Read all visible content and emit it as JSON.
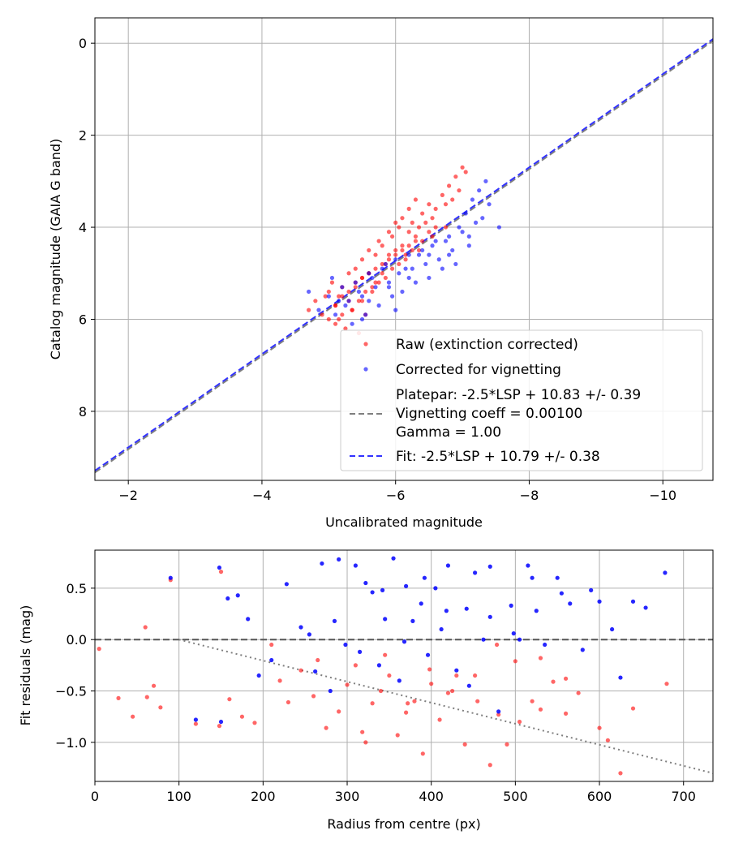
{
  "chart_data": [
    {
      "type": "scatter",
      "xlabel": "Uncalibrated magnitude",
      "ylabel": "Catalog magnitude (GAIA G band)",
      "xlim": [
        -1.5,
        -10.75
      ],
      "ylim": [
        9.5,
        -0.55
      ],
      "x_axis_inverted": true,
      "y_axis_inverted": true,
      "grid": true,
      "legend_position": "lower-right",
      "xticks": [
        -2,
        -4,
        -6,
        -8,
        -10
      ],
      "xtick_labels": [
        "−2",
        "−4",
        "−6",
        "−8",
        "−10"
      ],
      "yticks": [
        0,
        2,
        4,
        6,
        8
      ],
      "ytick_labels": [
        "0",
        "2",
        "4",
        "6",
        "8"
      ],
      "series": [
        {
          "name": "Raw (extinction corrected)",
          "kind": "points",
          "color": "#ff0000",
          "opacity": 0.6,
          "x": [
            -4.7,
            -4.8,
            -4.9,
            -5.0,
            -5.0,
            -5.05,
            -5.1,
            -5.1,
            -5.15,
            -5.2,
            -5.2,
            -5.25,
            -5.3,
            -5.3,
            -5.35,
            -5.4,
            -5.4,
            -5.45,
            -5.5,
            -5.5,
            -5.5,
            -5.55,
            -5.6,
            -5.6,
            -5.65,
            -5.7,
            -5.7,
            -5.75,
            -5.8,
            -5.8,
            -5.85,
            -5.9,
            -5.9,
            -5.95,
            -6.0,
            -6.0,
            -6.05,
            -6.1,
            -6.1,
            -6.15,
            -6.2,
            -6.2,
            -6.25,
            -6.3,
            -6.3,
            -6.35,
            -6.4,
            -6.4,
            -6.45,
            -6.5,
            -6.5,
            -6.55,
            -6.6,
            -6.6,
            -6.7,
            -6.75,
            -6.8,
            -6.85,
            -6.9,
            -6.95,
            -7.0,
            -7.05,
            -5.2,
            -5.4,
            -5.6,
            -5.8,
            -6.0,
            -6.2,
            -5.1,
            -5.3,
            -5.5,
            -5.7,
            -5.9,
            -6.1,
            -6.3,
            -5.45,
            -5.65,
            -5.85,
            -6.05,
            -6.25,
            -5.15,
            -5.35,
            -5.55,
            -5.75,
            -5.95,
            -6.15,
            -6.35,
            -6.55,
            -6.75,
            -4.95
          ],
          "y": [
            5.8,
            5.6,
            5.9,
            5.4,
            6.0,
            5.2,
            5.7,
            6.1,
            5.5,
            5.3,
            5.9,
            6.2,
            5.0,
            5.6,
            5.8,
            4.9,
            5.3,
            6.3,
            4.7,
            5.1,
            5.6,
            5.9,
            4.5,
            5.0,
            5.4,
            4.6,
            5.2,
            4.3,
            4.4,
            5.0,
            4.8,
            4.1,
            4.6,
            4.2,
            3.9,
            4.5,
            4.0,
            3.8,
            4.4,
            4.6,
            3.6,
            4.1,
            3.9,
            3.4,
            4.2,
            4.0,
            3.7,
            4.3,
            3.9,
            3.5,
            4.1,
            3.8,
            3.6,
            4.0,
            3.3,
            3.5,
            3.1,
            3.4,
            2.9,
            3.2,
            2.7,
            2.8,
            5.5,
            5.2,
            5.0,
            4.8,
            4.6,
            4.4,
            5.7,
            5.4,
            5.1,
            4.9,
            4.7,
            4.5,
            4.3,
            5.6,
            5.3,
            5.1,
            4.8,
            4.5,
            6.0,
            5.8,
            5.4,
            5.2,
            4.9,
            4.7,
            4.5,
            4.2,
            4.0,
            5.5
          ]
        },
        {
          "name": "Corrected for vignetting",
          "kind": "points",
          "color": "#0000ff",
          "opacity": 0.6,
          "x": [
            -4.7,
            -4.85,
            -5.0,
            -5.1,
            -5.2,
            -5.3,
            -5.35,
            -5.4,
            -5.5,
            -5.55,
            -5.6,
            -5.7,
            -5.75,
            -5.8,
            -5.9,
            -5.95,
            -6.0,
            -6.05,
            -6.1,
            -6.2,
            -6.25,
            -6.3,
            -6.4,
            -6.45,
            -6.5,
            -6.6,
            -6.65,
            -6.7,
            -6.8,
            -6.85,
            -6.9,
            -7.0,
            -7.1,
            -7.2,
            -7.3,
            -7.4,
            -7.55,
            -5.25,
            -5.45,
            -5.65,
            -5.85,
            -6.15,
            -6.35,
            -6.55,
            -6.75,
            -6.95,
            -7.05,
            -7.15,
            -7.25,
            -7.35,
            -5.15,
            -5.6,
            -5.9,
            -6.2,
            -6.5,
            -6.8,
            -7.1,
            -5.05,
            -5.5,
            -6.0
          ],
          "y": [
            5.4,
            5.8,
            5.5,
            5.9,
            5.3,
            5.6,
            6.1,
            5.2,
            5.5,
            5.9,
            5.0,
            5.3,
            5.7,
            4.9,
            5.2,
            5.5,
            4.7,
            5.0,
            5.4,
            4.6,
            4.9,
            5.2,
            4.5,
            4.8,
            5.1,
            4.3,
            4.7,
            4.9,
            4.2,
            4.5,
            4.8,
            4.1,
            4.4,
            3.9,
            3.8,
            3.5,
            4.0,
            5.7,
            5.4,
            5.1,
            4.8,
            4.9,
            4.6,
            4.4,
            4.3,
            4.0,
            3.7,
            3.4,
            3.2,
            3.0,
            5.6,
            5.6,
            5.3,
            5.1,
            4.6,
            4.6,
            4.2,
            5.1,
            6.0,
            5.8
          ]
        },
        {
          "name": "Platepar: -2.5*LSP + 10.83 +/- 0.39\nVignetting coeff = 0.00100\nGamma = 1.00",
          "kind": "line",
          "dash": "dashed",
          "color": "#7f7f7f",
          "x": [
            -1.5,
            -10.75
          ],
          "y": [
            9.33,
            -0.05
          ]
        },
        {
          "name": "Fit: -2.5*LSP + 10.79 +/- 0.38",
          "kind": "line",
          "dash": "dashed",
          "color": "#3333ff",
          "x": [
            -1.5,
            -10.75
          ],
          "y": [
            9.29,
            -0.09
          ]
        }
      ]
    },
    {
      "type": "scatter",
      "xlabel": "Radius from centre (px)",
      "ylabel": "Fit residuals (mag)",
      "xlim": [
        0,
        735
      ],
      "ylim": [
        -1.38,
        0.87
      ],
      "grid": true,
      "xticks": [
        0,
        100,
        200,
        300,
        400,
        500,
        600,
        700
      ],
      "xtick_labels": [
        "0",
        "100",
        "200",
        "300",
        "400",
        "500",
        "600",
        "700"
      ],
      "yticks": [
        0.5,
        0.0,
        -0.5,
        -1.0
      ],
      "ytick_labels": [
        "0.5",
        "0.0",
        "−0.5",
        "−1.0"
      ],
      "series": [
        {
          "name": "Raw",
          "kind": "points",
          "color": "#ff0000",
          "opacity": 0.6,
          "x": [
            5,
            28,
            45,
            60,
            62,
            70,
            78,
            90,
            120,
            148,
            150,
            160,
            175,
            190,
            210,
            230,
            245,
            260,
            275,
            290,
            300,
            310,
            322,
            330,
            340,
            350,
            360,
            370,
            380,
            390,
            400,
            410,
            420,
            430,
            440,
            455,
            470,
            480,
            490,
            505,
            520,
            530,
            545,
            560,
            575,
            600,
            610,
            625,
            640,
            680,
            220,
            265,
            318,
            345,
            372,
            398,
            425,
            452,
            478,
            500,
            530,
            560
          ],
          "y": [
            -0.09,
            -0.57,
            -0.75,
            0.12,
            -0.56,
            -0.45,
            -0.66,
            0.58,
            -0.82,
            -0.84,
            0.66,
            -0.58,
            -0.75,
            -0.81,
            -0.05,
            -0.61,
            -0.3,
            -0.55,
            -0.86,
            -0.7,
            -0.44,
            -0.25,
            -1.0,
            -0.62,
            -0.5,
            -0.35,
            -0.93,
            -0.71,
            -0.6,
            -1.11,
            -0.43,
            -0.78,
            -0.52,
            -0.35,
            -1.02,
            -0.6,
            -1.22,
            -0.73,
            -1.02,
            -0.8,
            -0.6,
            -0.68,
            -0.41,
            -0.72,
            -0.52,
            -0.86,
            -0.98,
            -1.3,
            -0.67,
            -0.43,
            -0.4,
            -0.2,
            -0.9,
            -0.15,
            -0.62,
            -0.29,
            -0.5,
            -0.35,
            -0.05,
            -0.21,
            -0.18,
            -0.38
          ]
        },
        {
          "name": "Corrected",
          "kind": "points",
          "color": "#0000ff",
          "opacity": 0.85,
          "x": [
            90,
            120,
            148,
            150,
            158,
            170,
            182,
            195,
            210,
            228,
            245,
            262,
            270,
            280,
            290,
            298,
            310,
            322,
            330,
            338,
            345,
            355,
            362,
            370,
            378,
            388,
            396,
            405,
            412,
            420,
            430,
            442,
            452,
            462,
            470,
            480,
            495,
            505,
            515,
            520,
            535,
            550,
            565,
            580,
            600,
            615,
            625,
            640,
            655,
            678,
            255,
            285,
            315,
            342,
            368,
            392,
            418,
            445,
            470,
            498,
            525,
            555,
            590
          ],
          "y": [
            0.6,
            -0.78,
            0.7,
            -0.8,
            0.4,
            0.43,
            0.2,
            -0.35,
            -0.2,
            0.54,
            0.12,
            -0.31,
            0.74,
            -0.5,
            0.78,
            -0.05,
            0.72,
            0.55,
            0.46,
            -0.25,
            0.2,
            0.79,
            -0.4,
            0.52,
            0.18,
            0.35,
            -0.15,
            0.5,
            0.1,
            0.72,
            -0.3,
            0.3,
            0.65,
            0.0,
            0.71,
            -0.7,
            0.33,
            0.0,
            0.72,
            0.6,
            -0.05,
            0.6,
            0.35,
            -0.1,
            0.37,
            0.1,
            -0.37,
            0.37,
            0.31,
            0.65,
            0.05,
            0.18,
            -0.12,
            0.48,
            -0.02,
            0.6,
            0.28,
            -0.45,
            0.22,
            0.06,
            0.28,
            0.45,
            0.48
          ]
        },
        {
          "kind": "line",
          "dash": "dashed",
          "color": "#555555",
          "x": [
            0,
            735
          ],
          "y": [
            0.0,
            0.0
          ]
        },
        {
          "kind": "line",
          "dash": "dotted",
          "color": "#7f7f7f",
          "x": [
            100,
            735
          ],
          "y": [
            0.0,
            -1.3
          ]
        }
      ]
    }
  ]
}
